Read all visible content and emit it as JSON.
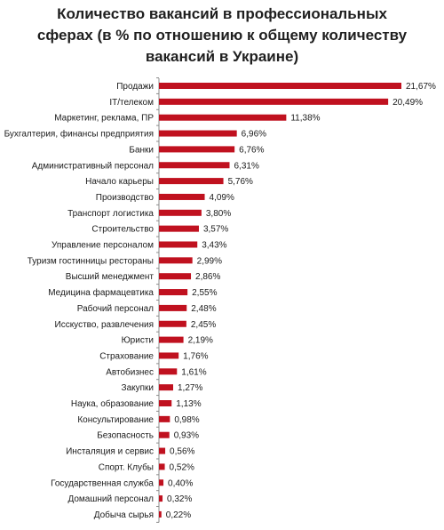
{
  "chart_data": {
    "type": "bar",
    "orientation": "horizontal",
    "title": "Количество вакансий в профессиональных сферах (в % по отношению к общему количеству вакансий в Украине)",
    "bar_color": "#c0111f",
    "axis_color": "#8c8c8c",
    "categories": [
      "Продажи",
      "IT/телеком",
      "Маркетинг, реклама, ПР",
      "Бухгалтерия, финансы предприятия",
      "Банки",
      "Административный персонал",
      "Начало карьеры",
      "Производство",
      "Транспорт логистика",
      "Строительство",
      "Управление персоналом",
      "Туризм гостинницы рестораны",
      "Высший менеджмент",
      "Медицина фармацевтика",
      "Рабочий персонал",
      "Исскуство, развлечения",
      "Юристи",
      "Страхование",
      "Автобизнес",
      "Закупки",
      "Наука, образование",
      "Консультирование",
      "Безопасность",
      "Инсталяция и сервис",
      "Спорт. Клубы",
      "Государственная служба",
      "Домашний персонал",
      "Добыча сырья"
    ],
    "values": [
      21.67,
      20.49,
      11.38,
      6.96,
      6.76,
      6.31,
      5.76,
      4.09,
      3.8,
      3.57,
      3.43,
      2.99,
      2.86,
      2.55,
      2.48,
      2.45,
      2.19,
      1.76,
      1.61,
      1.27,
      1.13,
      0.98,
      0.93,
      0.56,
      0.52,
      0.4,
      0.32,
      0.22
    ],
    "value_labels": [
      "21,67%",
      "20,49%",
      "11,38%",
      "6,96%",
      "6,76%",
      "6,31%",
      "5,76%",
      "4,09%",
      "3,80%",
      "3,57%",
      "3,43%",
      "2,99%",
      "2,86%",
      "2,55%",
      "2,48%",
      "2,45%",
      "2,19%",
      "1,76%",
      "1,61%",
      "1,27%",
      "1,13%",
      "0,98%",
      "0,93%",
      "0,56%",
      "0,52%",
      "0,40%",
      "0,32%",
      "0,22%"
    ],
    "xlim": [
      0,
      21.67
    ],
    "grid": false,
    "legend": "none"
  }
}
